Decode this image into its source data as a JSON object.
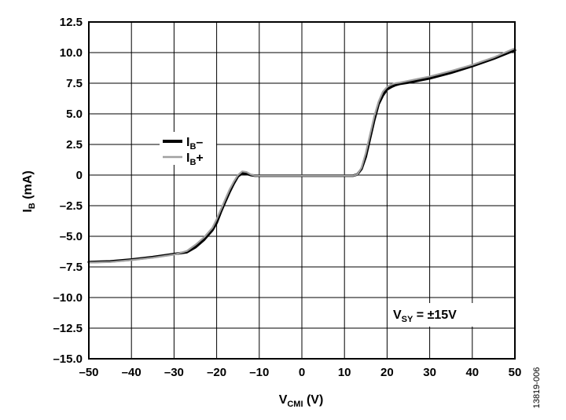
{
  "chart_data": {
    "type": "line",
    "xlabel": {
      "main": "V",
      "sub": "CMI",
      "unit": " (V)"
    },
    "ylabel": {
      "main": "I",
      "sub": "B",
      "unit": " (mA)"
    },
    "xlim": [
      -50,
      50
    ],
    "ylim": [
      -15,
      12.5
    ],
    "xticks": [
      -50,
      -40,
      -30,
      -20,
      -10,
      0,
      10,
      20,
      30,
      40,
      50
    ],
    "xtick_labels": [
      "–50",
      "–40",
      "–30",
      "–20",
      "–10",
      "0",
      "10",
      "20",
      "30",
      "40",
      "50"
    ],
    "yticks": [
      12.5,
      10,
      7.5,
      5,
      2.5,
      0,
      -2.5,
      -5,
      -7.5,
      -10,
      -12.5,
      -15
    ],
    "ytick_labels": [
      "12.5",
      "10.0",
      "7.5",
      "5.0",
      "2.5",
      "0",
      "–2.5",
      "–5.0",
      "–7.5",
      "–10.0",
      "–12.5",
      "–15.0"
    ],
    "grid": true,
    "legend_position": "upper-left",
    "series": [
      {
        "name": {
          "main": "I",
          "sub": "B",
          "suffix": "–"
        },
        "color": "#000000",
        "x": [
          -50,
          -45,
          -40,
          -35,
          -30,
          -27,
          -25,
          -23,
          -21,
          -20,
          -19,
          -18,
          -17,
          -16,
          -15,
          -14,
          -13,
          -12,
          -11,
          -10,
          -5,
          0,
          5,
          10,
          12,
          13,
          14,
          15,
          16,
          17,
          18,
          19,
          20,
          21,
          22,
          23,
          25,
          30,
          35,
          40,
          45,
          50
        ],
        "y": [
          -7.1,
          -7.05,
          -6.9,
          -6.7,
          -6.45,
          -6.3,
          -5.9,
          -5.3,
          -4.5,
          -3.9,
          -3.0,
          -2.2,
          -1.4,
          -0.7,
          -0.1,
          0.15,
          0.1,
          0,
          -0.05,
          -0.05,
          -0.05,
          -0.05,
          -0.05,
          -0.05,
          -0.05,
          0.05,
          0.5,
          1.5,
          3.0,
          4.5,
          5.8,
          6.5,
          7.0,
          7.2,
          7.35,
          7.45,
          7.55,
          7.9,
          8.35,
          8.9,
          9.5,
          10.2
        ]
      },
      {
        "name": {
          "main": "I",
          "sub": "B",
          "suffix": "+"
        },
        "color": "#a0a0a0",
        "x": [
          -50,
          -45,
          -40,
          -35,
          -30,
          -27,
          -25,
          -23,
          -21,
          -20,
          -19,
          -18,
          -17,
          -16,
          -15,
          -14,
          -13,
          -12,
          -11,
          -10,
          -5,
          0,
          5,
          10,
          12,
          13,
          14,
          15,
          16,
          17,
          18,
          19,
          20,
          21,
          22,
          23,
          25,
          30,
          35,
          40,
          45,
          50
        ],
        "y": [
          -7.15,
          -7.1,
          -6.95,
          -6.75,
          -6.5,
          -6.2,
          -5.7,
          -5.1,
          -4.3,
          -3.6,
          -2.8,
          -2.0,
          -1.2,
          -0.55,
          0.0,
          0.3,
          0.25,
          0.05,
          -0.05,
          -0.05,
          -0.05,
          -0.05,
          -0.05,
          -0.05,
          -0.05,
          0.05,
          0.6,
          1.8,
          3.3,
          4.8,
          6.0,
          6.8,
          7.2,
          7.4,
          7.5,
          7.55,
          7.7,
          8.05,
          8.5,
          9.0,
          9.6,
          10.35
        ]
      }
    ],
    "annotation": {
      "main": "V",
      "sub": "SY",
      "rest": " = ±15V"
    },
    "figure_id": "13819-006"
  }
}
